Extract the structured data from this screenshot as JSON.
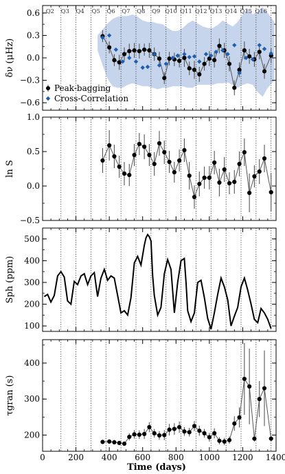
{
  "figure": {
    "x_axis_label": "Time (days)",
    "x_tick_labels": [
      "0",
      "200",
      "400",
      "600",
      "800",
      "1000",
      "1200",
      "1400"
    ]
  },
  "chart_data": [
    {
      "type": "scatter",
      "ylabel": "δν (μHz)",
      "ylim": [
        -0.7,
        0.7
      ],
      "yticks": [
        -0.6,
        -0.3,
        0.0,
        0.3,
        0.6
      ],
      "ytick_labels": [
        "−0.6",
        "−0.3",
        "0.0",
        "0.3",
        "0.6"
      ],
      "quarter_labels": [
        "Q2",
        "Q3",
        "Q4",
        "Q5",
        "Q6",
        "Q7",
        "Q8",
        "Q9",
        "Q10",
        "Q11",
        "Q12",
        "Q13",
        "Q14",
        "Q15",
        "Q16"
      ],
      "quarter_boundaries": [
        110,
        200,
        290,
        380,
        470,
        560,
        650,
        740,
        830,
        920,
        1010,
        1100,
        1190,
        1280,
        1370
      ],
      "quarter_label_x": [
        45,
        135,
        225,
        320,
        410,
        500,
        590,
        680,
        770,
        860,
        950,
        1040,
        1130,
        1220,
        1310
      ],
      "legend": [
        "Peak-bagging",
        "Cross-Correlation"
      ],
      "legend_position": "lower-left",
      "band": {
        "x": [
          330,
          360,
          390,
          420,
          450,
          480,
          510,
          540,
          570,
          600,
          630,
          660,
          690,
          720,
          750,
          780,
          810,
          840,
          870,
          900,
          930,
          960,
          990,
          1020,
          1050,
          1080,
          1110,
          1140,
          1170,
          1200,
          1230,
          1260,
          1290,
          1320,
          1350,
          1390
        ],
        "upper": [
          0.3,
          0.38,
          0.46,
          0.52,
          0.55,
          0.56,
          0.56,
          0.58,
          0.55,
          0.5,
          0.48,
          0.48,
          0.46,
          0.45,
          0.4,
          0.36,
          0.36,
          0.4,
          0.46,
          0.5,
          0.46,
          0.42,
          0.4,
          0.4,
          0.44,
          0.5,
          0.46,
          0.42,
          0.48,
          0.58,
          0.66,
          0.58,
          0.62,
          0.68,
          0.6,
          0.48
        ],
        "lower": [
          0.1,
          -0.1,
          -0.28,
          -0.38,
          -0.4,
          -0.4,
          -0.36,
          -0.34,
          -0.36,
          -0.38,
          -0.38,
          -0.4,
          -0.42,
          -0.4,
          -0.4,
          -0.38,
          -0.38,
          -0.38,
          -0.4,
          -0.4,
          -0.36,
          -0.36,
          -0.36,
          -0.36,
          -0.34,
          -0.34,
          -0.33,
          -0.36,
          -0.4,
          -0.36,
          -0.34,
          -0.36,
          -0.46,
          -0.52,
          -0.4,
          -0.3
        ]
      },
      "series": [
        {
          "name": "Peak-bagging",
          "color": "#000000",
          "x": [
            360,
            400,
            430,
            460,
            490,
            520,
            550,
            580,
            610,
            640,
            670,
            700,
            730,
            760,
            790,
            820,
            850,
            880,
            910,
            940,
            970,
            1000,
            1030,
            1060,
            1090,
            1120,
            1150,
            1180,
            1210,
            1240,
            1270,
            1300,
            1330,
            1370
          ],
          "y": [
            0.29,
            0.14,
            -0.03,
            -0.06,
            0.05,
            0.09,
            0.1,
            0.09,
            0.11,
            0.1,
            0.05,
            -0.01,
            -0.27,
            -0.01,
            -0.02,
            -0.04,
            0.0,
            -0.14,
            -0.16,
            -0.22,
            -0.08,
            -0.01,
            -0.03,
            0.16,
            0.1,
            -0.08,
            -0.4,
            -0.16,
            0.1,
            0.02,
            -0.02,
            0.08,
            -0.18,
            0.03
          ],
          "err": [
            0.08,
            0.08,
            0.08,
            0.1,
            0.09,
            0.1,
            0.1,
            0.1,
            0.08,
            0.1,
            0.09,
            0.09,
            0.08,
            0.09,
            0.09,
            0.09,
            0.12,
            0.09,
            0.12,
            0.1,
            0.09,
            0.1,
            0.1,
            0.1,
            0.1,
            0.1,
            0.1,
            0.1,
            0.12,
            0.1,
            0.1,
            0.1,
            0.1,
            0.1
          ]
        },
        {
          "name": "Cross-Correlation",
          "color": "#1f5fb0",
          "x": [
            360,
            400,
            440,
            480,
            520,
            560,
            600,
            630,
            670,
            700,
            740,
            780,
            810,
            850,
            880,
            910,
            940,
            980,
            1010,
            1040,
            1080,
            1110,
            1150,
            1180,
            1220,
            1260,
            1300,
            1330,
            1370
          ],
          "y": [
            0.27,
            0.3,
            0.11,
            -0.05,
            0.0,
            -0.05,
            -0.13,
            -0.12,
            0.05,
            -0.1,
            -0.08,
            0.0,
            0.03,
            0.05,
            0.01,
            0.02,
            -0.05,
            0.05,
            0.03,
            0.08,
            0.1,
            0.05,
            0.17,
            -0.2,
            0.0,
            -0.02,
            0.17,
            0.12,
            0.06
          ]
        }
      ]
    },
    {
      "type": "scatter",
      "ylabel": "ln S",
      "ylim": [
        -0.5,
        1.0
      ],
      "yticks": [
        -0.5,
        0.0,
        0.5,
        1.0
      ],
      "ytick_labels": [
        "−0.5",
        "0.0",
        "0.5",
        "1.0"
      ],
      "series": [
        {
          "name": "",
          "color": "#000000",
          "x": [
            360,
            400,
            430,
            460,
            490,
            520,
            550,
            580,
            610,
            640,
            670,
            700,
            730,
            760,
            790,
            820,
            850,
            880,
            910,
            940,
            970,
            1000,
            1030,
            1060,
            1090,
            1120,
            1150,
            1180,
            1210,
            1240,
            1270,
            1300,
            1330,
            1370
          ],
          "y": [
            0.37,
            0.59,
            0.43,
            0.28,
            0.18,
            0.16,
            0.45,
            0.61,
            0.57,
            0.45,
            0.32,
            0.62,
            0.49,
            0.35,
            0.2,
            0.37,
            0.52,
            0.15,
            -0.16,
            0.03,
            0.12,
            0.12,
            0.34,
            0.05,
            0.24,
            0.04,
            0.06,
            0.32,
            0.49,
            -0.1,
            0.14,
            0.21,
            0.4,
            -0.09
          ],
          "err": [
            0.18,
            0.22,
            0.17,
            0.16,
            0.17,
            0.16,
            0.16,
            0.16,
            0.18,
            0.16,
            0.17,
            0.18,
            0.17,
            0.16,
            0.15,
            0.16,
            0.17,
            0.2,
            0.17,
            0.18,
            0.16,
            0.17,
            0.17,
            0.2,
            0.18,
            0.16,
            0.17,
            0.18,
            0.2,
            0.28,
            0.16,
            0.18,
            0.2,
            0.28
          ]
        }
      ]
    },
    {
      "type": "line",
      "ylabel": "Sph (ppm)",
      "ylim": [
        75,
        550
      ],
      "yticks": [
        100,
        200,
        300,
        400,
        500
      ],
      "ytick_labels": [
        "100",
        "200",
        "300",
        "400",
        "500"
      ],
      "series": [
        {
          "name": "",
          "color": "#000000",
          "x": [
            10,
            30,
            50,
            70,
            90,
            110,
            130,
            150,
            170,
            190,
            210,
            230,
            250,
            270,
            290,
            310,
            330,
            350,
            370,
            390,
            410,
            430,
            450,
            470,
            490,
            510,
            530,
            550,
            570,
            590,
            610,
            620,
            630,
            640,
            650,
            660,
            670,
            690,
            710,
            730,
            750,
            770,
            790,
            810,
            830,
            850,
            860,
            870,
            890,
            910,
            930,
            950,
            970,
            990,
            1010,
            1030,
            1050,
            1070,
            1090,
            1110,
            1130,
            1150,
            1170,
            1190,
            1210,
            1230,
            1250,
            1270,
            1290,
            1310,
            1330,
            1350,
            1370
          ],
          "y": [
            235,
            245,
            210,
            240,
            330,
            350,
            325,
            215,
            200,
            305,
            290,
            330,
            340,
            290,
            330,
            345,
            235,
            320,
            360,
            310,
            330,
            320,
            240,
            160,
            170,
            150,
            230,
            390,
            420,
            380,
            470,
            505,
            520,
            510,
            490,
            330,
            240,
            150,
            185,
            340,
            405,
            360,
            160,
            300,
            400,
            410,
            300,
            170,
            120,
            160,
            300,
            310,
            230,
            135,
            85,
            160,
            245,
            320,
            280,
            220,
            100,
            145,
            185,
            280,
            320,
            265,
            200,
            130,
            115,
            180,
            160,
            130,
            88
          ]
        }
      ]
    },
    {
      "type": "scatter",
      "ylabel": "τgran (s)",
      "ylim": [
        155,
        465
      ],
      "yticks": [
        200,
        300,
        400
      ],
      "ytick_labels": [
        "200",
        "300",
        "400"
      ],
      "series": [
        {
          "name": "",
          "color": "#000000",
          "x": [
            360,
            400,
            430,
            460,
            490,
            520,
            550,
            580,
            610,
            640,
            670,
            700,
            730,
            760,
            790,
            820,
            850,
            880,
            910,
            940,
            970,
            1000,
            1030,
            1060,
            1090,
            1120,
            1150,
            1180,
            1210,
            1240,
            1270,
            1300,
            1330,
            1370
          ],
          "y": [
            181,
            182,
            180,
            178,
            176,
            195,
            202,
            201,
            203,
            222,
            205,
            199,
            200,
            215,
            217,
            222,
            210,
            208,
            225,
            212,
            205,
            194,
            205,
            184,
            182,
            186,
            232,
            249,
            356,
            335,
            190,
            300,
            330,
            190
          ],
          "err": [
            6,
            6,
            6,
            6,
            6,
            10,
            12,
            12,
            14,
            14,
            12,
            12,
            14,
            16,
            16,
            16,
            12,
            12,
            14,
            14,
            12,
            12,
            14,
            10,
            10,
            10,
            20,
            28,
            100,
            105,
            8,
            50,
            105,
            8
          ]
        }
      ]
    }
  ]
}
